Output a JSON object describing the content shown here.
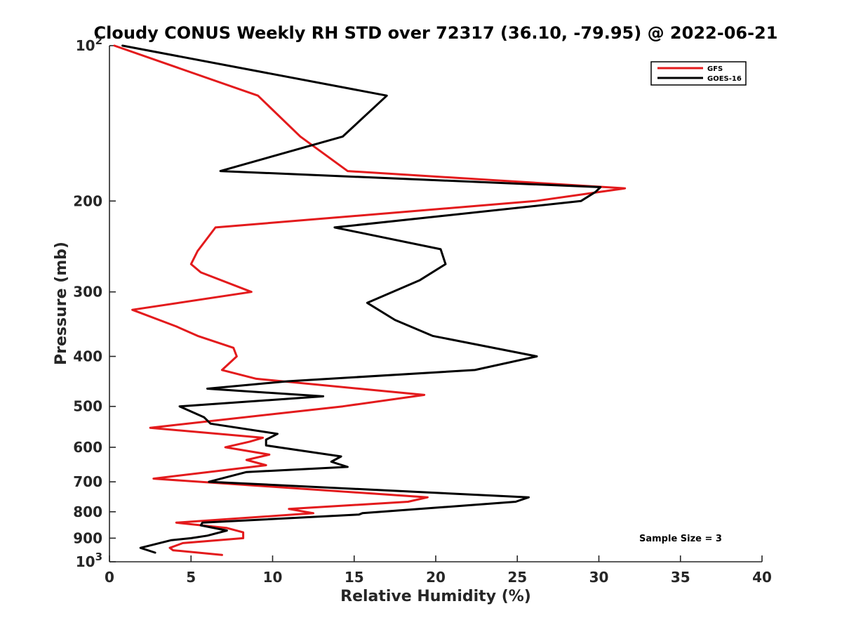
{
  "chart_data": {
    "type": "line",
    "title": "Cloudy CONUS Weekly RH STD over 72317 (36.10, -79.95) @ 2022-06-21",
    "xlabel": "Relative Humidity (%)",
    "ylabel": "Pressure (mb)",
    "xlim": [
      0,
      40
    ],
    "ylim": [
      100,
      1000
    ],
    "y_scale": "log",
    "y_reversed": true,
    "x_ticks": [
      "0",
      "5",
      "10",
      "15",
      "20",
      "25",
      "30",
      "35",
      "40"
    ],
    "y_ticks": [
      {
        "value": 100,
        "base": "10",
        "exp": "2"
      },
      {
        "value": 200,
        "label": "200"
      },
      {
        "value": 300,
        "label": "300"
      },
      {
        "value": 400,
        "label": "400"
      },
      {
        "value": 500,
        "label": "500"
      },
      {
        "value": 600,
        "label": "600"
      },
      {
        "value": 700,
        "label": "700"
      },
      {
        "value": 800,
        "label": "800"
      },
      {
        "value": 900,
        "label": "900"
      },
      {
        "value": 1000,
        "base": "10",
        "exp": "3"
      }
    ],
    "grid": false,
    "legend_position": "top-right",
    "annotation": "Sample Size = 3",
    "series": [
      {
        "name": "GFS",
        "color": "#e31a1c",
        "points": [
          [
            0.3,
            100
          ],
          [
            9.1,
            125
          ],
          [
            11.7,
            150
          ],
          [
            14.6,
            175
          ],
          [
            31.6,
            189
          ],
          [
            26.1,
            200
          ],
          [
            6.5,
            225
          ],
          [
            5.4,
            250
          ],
          [
            5.0,
            265
          ],
          [
            5.6,
            275
          ],
          [
            8.7,
            300
          ],
          [
            1.4,
            325
          ],
          [
            4.1,
            350
          ],
          [
            5.4,
            365
          ],
          [
            7.6,
            385
          ],
          [
            7.8,
            400
          ],
          [
            6.9,
            425
          ],
          [
            9.0,
            442
          ],
          [
            19.3,
            475
          ],
          [
            14.3,
            500
          ],
          [
            2.5,
            550
          ],
          [
            9.4,
            575
          ],
          [
            8.6,
            585
          ],
          [
            7.1,
            600
          ],
          [
            9.8,
            620
          ],
          [
            8.4,
            635
          ],
          [
            9.6,
            650
          ],
          [
            2.7,
            690
          ],
          [
            19.5,
            750
          ],
          [
            18.3,
            765
          ],
          [
            11.0,
            790
          ],
          [
            12.5,
            805
          ],
          [
            4.1,
            840
          ],
          [
            7.2,
            860
          ],
          [
            8.2,
            877
          ],
          [
            8.2,
            900
          ],
          [
            4.5,
            920
          ],
          [
            3.7,
            940
          ],
          [
            3.9,
            950
          ],
          [
            6.9,
            970
          ]
        ]
      },
      {
        "name": "GOES-16",
        "color": "#000000",
        "points": [
          [
            0.8,
            100
          ],
          [
            17.0,
            125
          ],
          [
            14.3,
            150
          ],
          [
            6.8,
            175
          ],
          [
            30.1,
            188
          ],
          [
            29.8,
            192
          ],
          [
            28.9,
            200
          ],
          [
            13.8,
            225
          ],
          [
            20.3,
            248
          ],
          [
            20.6,
            265
          ],
          [
            19.0,
            285
          ],
          [
            15.8,
            315
          ],
          [
            17.5,
            340
          ],
          [
            19.8,
            365
          ],
          [
            26.2,
            400
          ],
          [
            22.4,
            425
          ],
          [
            10.9,
            447
          ],
          [
            6.0,
            462
          ],
          [
            13.1,
            478
          ],
          [
            4.3,
            500
          ],
          [
            5.8,
            525
          ],
          [
            6.2,
            540
          ],
          [
            10.3,
            565
          ],
          [
            9.6,
            580
          ],
          [
            9.6,
            595
          ],
          [
            14.2,
            625
          ],
          [
            13.6,
            640
          ],
          [
            14.6,
            655
          ],
          [
            8.4,
            670
          ],
          [
            6.1,
            700
          ],
          [
            25.7,
            750
          ],
          [
            24.9,
            765
          ],
          [
            15.5,
            805
          ],
          [
            15.3,
            810
          ],
          [
            5.7,
            840
          ],
          [
            5.6,
            850
          ],
          [
            7.2,
            870
          ],
          [
            6.0,
            890
          ],
          [
            5.0,
            900
          ],
          [
            3.8,
            908
          ],
          [
            1.9,
            940
          ],
          [
            2.8,
            960
          ]
        ]
      }
    ]
  }
}
